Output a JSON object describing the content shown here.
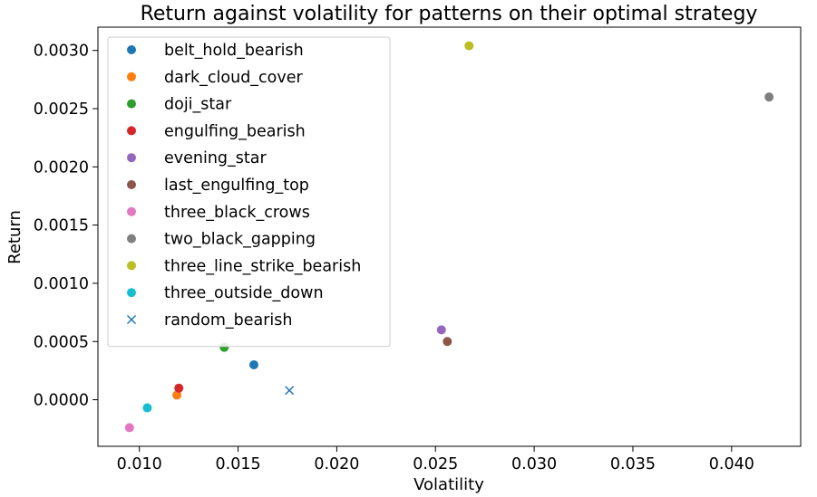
{
  "chart_data": {
    "type": "scatter",
    "title": "Return against volatility for patterns on their optimal strategy",
    "xlabel": "Volatility",
    "ylabel": "Return",
    "xlim": [
      0.0079,
      0.0435
    ],
    "ylim": [
      -0.0004,
      0.0032
    ],
    "xticks": [
      0.01,
      0.015,
      0.02,
      0.025,
      0.03,
      0.035,
      0.04
    ],
    "xtick_labels": [
      "0.010",
      "0.015",
      "0.020",
      "0.025",
      "0.030",
      "0.035",
      "0.040"
    ],
    "yticks": [
      0.0,
      0.0005,
      0.001,
      0.0015,
      0.002,
      0.0025,
      0.003
    ],
    "ytick_labels": [
      "0.0000",
      "0.0005",
      "0.0010",
      "0.0015",
      "0.0020",
      "0.0025",
      "0.0030"
    ],
    "grid": false,
    "legend_position": "upper-left",
    "series": [
      {
        "name": "belt_hold_bearish",
        "marker": "circle",
        "color": "#1f77b4",
        "points": [
          {
            "x": 0.0158,
            "y": 0.0003
          }
        ]
      },
      {
        "name": "dark_cloud_cover",
        "marker": "circle",
        "color": "#ff7f0e",
        "points": [
          {
            "x": 0.0119,
            "y": 4e-05
          }
        ]
      },
      {
        "name": "doji_star",
        "marker": "circle",
        "color": "#2ca02c",
        "points": [
          {
            "x": 0.0143,
            "y": 0.00045
          }
        ]
      },
      {
        "name": "engulfing_bearish",
        "marker": "circle",
        "color": "#d62728",
        "points": [
          {
            "x": 0.012,
            "y": 0.0001
          }
        ]
      },
      {
        "name": "evening_star",
        "marker": "circle",
        "color": "#9467bd",
        "points": [
          {
            "x": 0.0253,
            "y": 0.0006
          }
        ]
      },
      {
        "name": "last_engulfing_top",
        "marker": "circle",
        "color": "#8c564b",
        "points": [
          {
            "x": 0.0256,
            "y": 0.0005
          }
        ]
      },
      {
        "name": "three_black_crows",
        "marker": "circle",
        "color": "#e377c2",
        "points": [
          {
            "x": 0.0095,
            "y": -0.00024
          }
        ]
      },
      {
        "name": "two_black_gapping",
        "marker": "circle",
        "color": "#7f7f7f",
        "points": [
          {
            "x": 0.0419,
            "y": 0.0026
          }
        ]
      },
      {
        "name": "three_line_strike_bearish",
        "marker": "circle",
        "color": "#bcbd22",
        "points": [
          {
            "x": 0.0267,
            "y": 0.00304
          }
        ]
      },
      {
        "name": "three_outside_down",
        "marker": "circle",
        "color": "#17becf",
        "points": [
          {
            "x": 0.0104,
            "y": -7e-05
          }
        ]
      },
      {
        "name": "random_bearish",
        "marker": "x",
        "color": "#1f77b4",
        "points": [
          {
            "x": 0.0176,
            "y": 8e-05
          }
        ]
      }
    ]
  }
}
